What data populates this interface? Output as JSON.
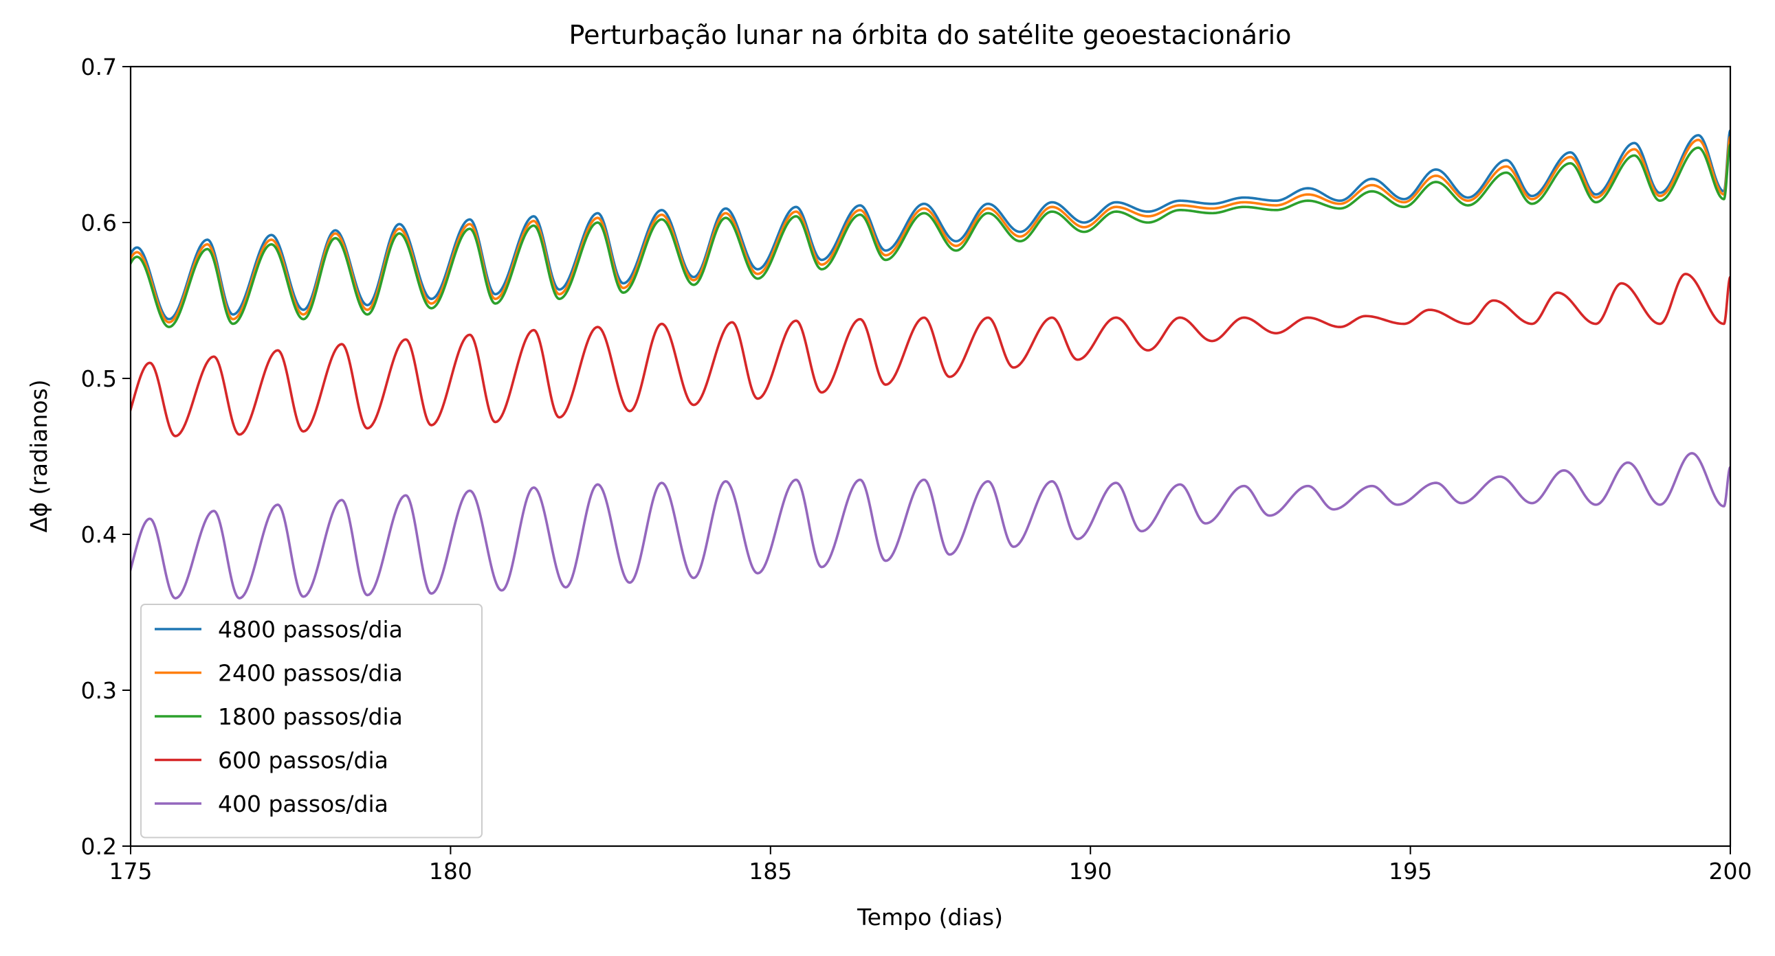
{
  "chart_data": {
    "type": "line",
    "title": "Perturbação lunar na órbita do satélite geoestacionário",
    "xlabel": "Tempo (dias)",
    "ylabel": "Δϕ (radianos)",
    "xlim": [
      175,
      200
    ],
    "ylim": [
      0.2,
      0.7
    ],
    "xticks": [
      175,
      180,
      185,
      190,
      195,
      200
    ],
    "xtick_labels": [
      "175",
      "180",
      "185",
      "190",
      "195",
      "200"
    ],
    "yticks": [
      0.2,
      0.3,
      0.4,
      0.5,
      0.6,
      0.7
    ],
    "ytick_labels": [
      "0.2",
      "0.3",
      "0.4",
      "0.5",
      "0.6",
      "0.7"
    ],
    "grid": false,
    "legend_position": "lower-left",
    "oscillation_period_days": 1.02,
    "series": [
      {
        "name": "4800 passos/dia",
        "color": "#1f77b4",
        "peaks": [
          [
            175.1,
            0.584
          ],
          [
            176.2,
            0.589
          ],
          [
            177.2,
            0.592
          ],
          [
            178.2,
            0.595
          ],
          [
            179.2,
            0.599
          ],
          [
            180.3,
            0.602
          ],
          [
            181.3,
            0.604
          ],
          [
            182.3,
            0.606
          ],
          [
            183.3,
            0.608
          ],
          [
            184.3,
            0.609
          ],
          [
            185.4,
            0.61
          ],
          [
            186.4,
            0.611
          ],
          [
            187.4,
            0.612
          ],
          [
            188.4,
            0.612
          ],
          [
            189.4,
            0.613
          ],
          [
            190.4,
            0.613
          ],
          [
            191.4,
            0.614
          ],
          [
            192.4,
            0.616
          ],
          [
            193.4,
            0.622
          ],
          [
            194.4,
            0.628
          ],
          [
            195.4,
            0.634
          ],
          [
            196.5,
            0.64
          ],
          [
            197.5,
            0.645
          ],
          [
            198.5,
            0.651
          ],
          [
            199.5,
            0.656
          ]
        ],
        "troughs": [
          [
            175.6,
            0.538
          ],
          [
            176.6,
            0.541
          ],
          [
            177.7,
            0.544
          ],
          [
            178.7,
            0.547
          ],
          [
            179.7,
            0.551
          ],
          [
            180.7,
            0.554
          ],
          [
            181.7,
            0.557
          ],
          [
            182.7,
            0.561
          ],
          [
            183.8,
            0.565
          ],
          [
            184.8,
            0.57
          ],
          [
            185.8,
            0.576
          ],
          [
            186.8,
            0.582
          ],
          [
            187.9,
            0.588
          ],
          [
            188.9,
            0.594
          ],
          [
            189.9,
            0.6
          ],
          [
            190.9,
            0.607
          ],
          [
            191.9,
            0.612
          ],
          [
            192.9,
            0.614
          ],
          [
            193.9,
            0.614
          ],
          [
            194.9,
            0.615
          ],
          [
            195.9,
            0.616
          ],
          [
            196.9,
            0.617
          ],
          [
            197.9,
            0.618
          ],
          [
            198.9,
            0.619
          ],
          [
            199.9,
            0.62
          ]
        ],
        "end": [
          200.0,
          0.659
        ]
      },
      {
        "name": "2400 passos/dia",
        "color": "#ff7f0e",
        "peaks": [
          [
            175.1,
            0.581
          ],
          [
            176.2,
            0.586
          ],
          [
            177.2,
            0.589
          ],
          [
            178.2,
            0.593
          ],
          [
            179.2,
            0.596
          ],
          [
            180.3,
            0.599
          ],
          [
            181.3,
            0.601
          ],
          [
            182.3,
            0.603
          ],
          [
            183.3,
            0.605
          ],
          [
            184.3,
            0.606
          ],
          [
            185.4,
            0.607
          ],
          [
            186.4,
            0.608
          ],
          [
            187.4,
            0.609
          ],
          [
            188.4,
            0.609
          ],
          [
            189.4,
            0.61
          ],
          [
            190.4,
            0.61
          ],
          [
            191.4,
            0.611
          ],
          [
            192.4,
            0.613
          ],
          [
            193.4,
            0.618
          ],
          [
            194.4,
            0.624
          ],
          [
            195.4,
            0.63
          ],
          [
            196.5,
            0.636
          ],
          [
            197.5,
            0.642
          ],
          [
            198.5,
            0.647
          ],
          [
            199.5,
            0.653
          ]
        ],
        "troughs": [
          [
            175.6,
            0.536
          ],
          [
            176.6,
            0.538
          ],
          [
            177.7,
            0.541
          ],
          [
            178.7,
            0.544
          ],
          [
            179.7,
            0.548
          ],
          [
            180.7,
            0.551
          ],
          [
            181.7,
            0.554
          ],
          [
            182.7,
            0.558
          ],
          [
            183.8,
            0.563
          ],
          [
            184.8,
            0.567
          ],
          [
            185.8,
            0.573
          ],
          [
            186.8,
            0.579
          ],
          [
            187.9,
            0.585
          ],
          [
            188.9,
            0.591
          ],
          [
            189.9,
            0.597
          ],
          [
            190.9,
            0.604
          ],
          [
            191.9,
            0.609
          ],
          [
            192.9,
            0.611
          ],
          [
            193.9,
            0.612
          ],
          [
            194.9,
            0.613
          ],
          [
            195.9,
            0.614
          ],
          [
            196.9,
            0.615
          ],
          [
            197.9,
            0.616
          ],
          [
            198.9,
            0.617
          ],
          [
            199.9,
            0.618
          ]
        ],
        "end": [
          200.0,
          0.655
        ]
      },
      {
        "name": "1800 passos/dia",
        "color": "#2ca02c",
        "peaks": [
          [
            175.1,
            0.578
          ],
          [
            176.2,
            0.583
          ],
          [
            177.2,
            0.586
          ],
          [
            178.2,
            0.59
          ],
          [
            179.2,
            0.593
          ],
          [
            180.3,
            0.596
          ],
          [
            181.3,
            0.598
          ],
          [
            182.3,
            0.6
          ],
          [
            183.3,
            0.602
          ],
          [
            184.3,
            0.603
          ],
          [
            185.4,
            0.604
          ],
          [
            186.4,
            0.605
          ],
          [
            187.4,
            0.606
          ],
          [
            188.4,
            0.606
          ],
          [
            189.4,
            0.607
          ],
          [
            190.4,
            0.607
          ],
          [
            191.4,
            0.608
          ],
          [
            192.4,
            0.61
          ],
          [
            193.4,
            0.614
          ],
          [
            194.4,
            0.62
          ],
          [
            195.4,
            0.626
          ],
          [
            196.5,
            0.632
          ],
          [
            197.5,
            0.638
          ],
          [
            198.5,
            0.643
          ],
          [
            199.5,
            0.648
          ]
        ],
        "troughs": [
          [
            175.6,
            0.533
          ],
          [
            176.6,
            0.535
          ],
          [
            177.7,
            0.538
          ],
          [
            178.7,
            0.541
          ],
          [
            179.7,
            0.545
          ],
          [
            180.7,
            0.548
          ],
          [
            181.7,
            0.551
          ],
          [
            182.7,
            0.555
          ],
          [
            183.8,
            0.56
          ],
          [
            184.8,
            0.564
          ],
          [
            185.8,
            0.57
          ],
          [
            186.8,
            0.576
          ],
          [
            187.9,
            0.582
          ],
          [
            188.9,
            0.588
          ],
          [
            189.9,
            0.594
          ],
          [
            190.9,
            0.6
          ],
          [
            191.9,
            0.606
          ],
          [
            192.9,
            0.608
          ],
          [
            193.9,
            0.609
          ],
          [
            194.9,
            0.61
          ],
          [
            195.9,
            0.611
          ],
          [
            196.9,
            0.612
          ],
          [
            197.9,
            0.613
          ],
          [
            198.9,
            0.614
          ],
          [
            199.9,
            0.615
          ]
        ],
        "end": [
          200.0,
          0.65
        ]
      },
      {
        "name": "600 passos/dia",
        "color": "#d62728",
        "peaks": [
          [
            175.3,
            0.51
          ],
          [
            176.3,
            0.514
          ],
          [
            177.3,
            0.518
          ],
          [
            178.3,
            0.522
          ],
          [
            179.3,
            0.525
          ],
          [
            180.3,
            0.528
          ],
          [
            181.3,
            0.531
          ],
          [
            182.3,
            0.533
          ],
          [
            183.3,
            0.535
          ],
          [
            184.4,
            0.536
          ],
          [
            185.4,
            0.537
          ],
          [
            186.4,
            0.538
          ],
          [
            187.4,
            0.539
          ],
          [
            188.4,
            0.539
          ],
          [
            189.4,
            0.539
          ],
          [
            190.4,
            0.539
          ],
          [
            191.4,
            0.539
          ],
          [
            192.4,
            0.539
          ],
          [
            193.4,
            0.539
          ],
          [
            194.3,
            0.54
          ],
          [
            195.3,
            0.544
          ],
          [
            196.3,
            0.55
          ],
          [
            197.3,
            0.555
          ],
          [
            198.3,
            0.561
          ],
          [
            199.3,
            0.567
          ]
        ],
        "troughs": [
          [
            175.7,
            0.463
          ],
          [
            176.7,
            0.464
          ],
          [
            177.7,
            0.466
          ],
          [
            178.7,
            0.468
          ],
          [
            179.7,
            0.47
          ],
          [
            180.7,
            0.472
          ],
          [
            181.7,
            0.475
          ],
          [
            182.8,
            0.479
          ],
          [
            183.8,
            0.483
          ],
          [
            184.8,
            0.487
          ],
          [
            185.8,
            0.491
          ],
          [
            186.8,
            0.496
          ],
          [
            187.8,
            0.501
          ],
          [
            188.8,
            0.507
          ],
          [
            189.8,
            0.512
          ],
          [
            190.9,
            0.518
          ],
          [
            191.9,
            0.524
          ],
          [
            192.9,
            0.529
          ],
          [
            193.9,
            0.533
          ],
          [
            194.9,
            0.535
          ],
          [
            195.9,
            0.535
          ],
          [
            196.9,
            0.535
          ],
          [
            197.9,
            0.535
          ],
          [
            198.9,
            0.535
          ],
          [
            199.9,
            0.535
          ]
        ],
        "end": [
          200.0,
          0.565
        ]
      },
      {
        "name": "400 passos/dia",
        "color": "#9467bd",
        "peaks": [
          [
            175.3,
            0.41
          ],
          [
            176.3,
            0.415
          ],
          [
            177.3,
            0.419
          ],
          [
            178.3,
            0.422
          ],
          [
            179.3,
            0.425
          ],
          [
            180.3,
            0.428
          ],
          [
            181.3,
            0.43
          ],
          [
            182.3,
            0.432
          ],
          [
            183.3,
            0.433
          ],
          [
            184.3,
            0.434
          ],
          [
            185.4,
            0.435
          ],
          [
            186.4,
            0.435
          ],
          [
            187.4,
            0.435
          ],
          [
            188.4,
            0.434
          ],
          [
            189.4,
            0.434
          ],
          [
            190.4,
            0.433
          ],
          [
            191.4,
            0.432
          ],
          [
            192.4,
            0.431
          ],
          [
            193.4,
            0.431
          ],
          [
            194.4,
            0.431
          ],
          [
            195.4,
            0.433
          ],
          [
            196.4,
            0.437
          ],
          [
            197.4,
            0.441
          ],
          [
            198.4,
            0.446
          ],
          [
            199.4,
            0.452
          ]
        ],
        "troughs": [
          [
            175.7,
            0.359
          ],
          [
            176.7,
            0.359
          ],
          [
            177.7,
            0.36
          ],
          [
            178.7,
            0.361
          ],
          [
            179.7,
            0.362
          ],
          [
            180.8,
            0.364
          ],
          [
            181.8,
            0.366
          ],
          [
            182.8,
            0.369
          ],
          [
            183.8,
            0.372
          ],
          [
            184.8,
            0.375
          ],
          [
            185.8,
            0.379
          ],
          [
            186.8,
            0.383
          ],
          [
            187.8,
            0.387
          ],
          [
            188.8,
            0.392
          ],
          [
            189.8,
            0.397
          ],
          [
            190.8,
            0.402
          ],
          [
            191.8,
            0.407
          ],
          [
            192.8,
            0.412
          ],
          [
            193.8,
            0.416
          ],
          [
            194.8,
            0.419
          ],
          [
            195.8,
            0.42
          ],
          [
            196.9,
            0.42
          ],
          [
            197.9,
            0.419
          ],
          [
            198.9,
            0.419
          ],
          [
            199.9,
            0.418
          ]
        ],
        "end": [
          200.0,
          0.443
        ]
      }
    ]
  }
}
